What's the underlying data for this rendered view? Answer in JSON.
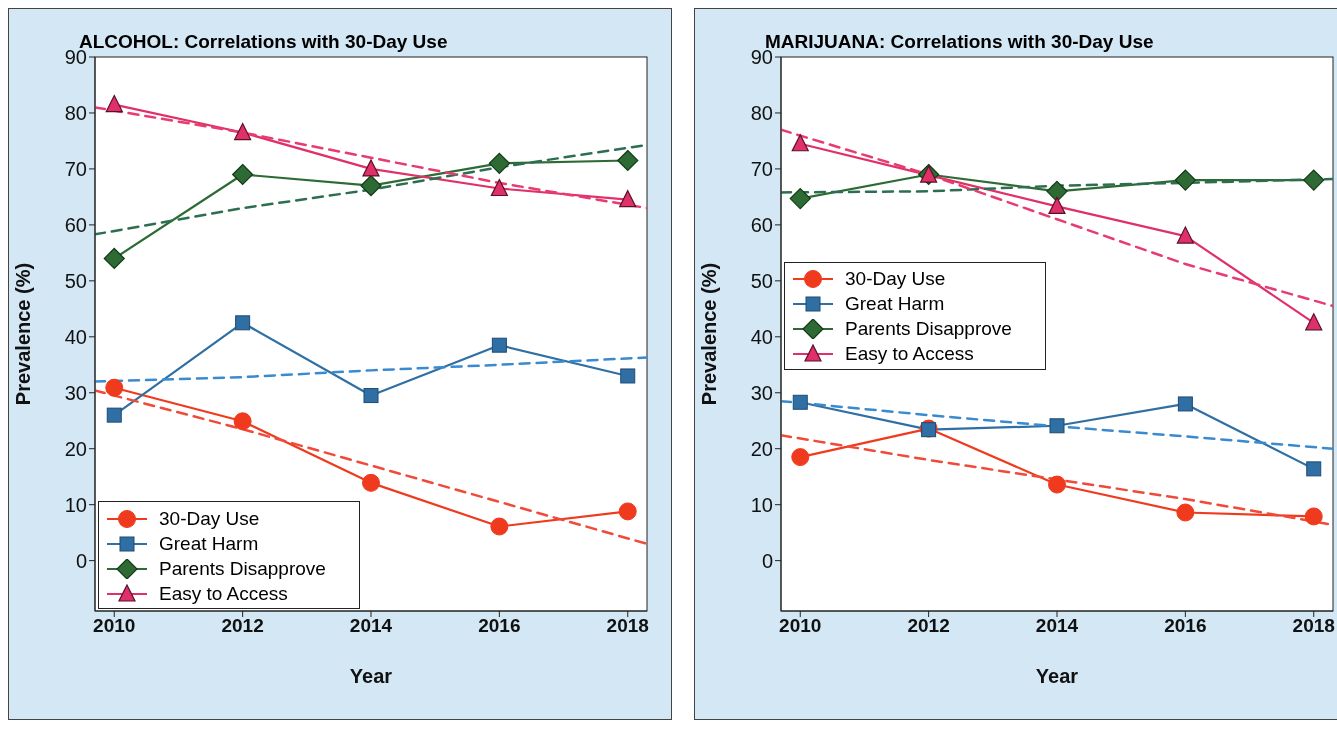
{
  "chart_data": [
    {
      "type": "line",
      "title": "ALCOHOL:  Correlations with 30-Day Use",
      "xlabel": "Year",
      "ylabel": "Prevalence (%)",
      "x": [
        2010,
        2012,
        2014,
        2016,
        2018
      ],
      "xlim": [
        2009.7,
        2018.3
      ],
      "xticks": [
        2010,
        2012,
        2014,
        2016,
        2018
      ],
      "ylim": [
        -9,
        90
      ],
      "yticks": [
        0,
        10,
        20,
        30,
        40,
        50,
        60,
        70,
        80,
        90
      ],
      "legend": "bottom left",
      "series": [
        {
          "name": "30-Day Use",
          "color": "#f03a1e",
          "values": [
            30.9,
            24.9,
            13.9,
            6.1,
            8.8
          ],
          "marker": "circle",
          "line_style": "solid"
        },
        {
          "name": "Great Harm",
          "color": "#2f6fa3",
          "values": [
            26,
            42.5,
            29.5,
            38.5,
            33
          ],
          "marker": "square",
          "line_style": "solid"
        },
        {
          "name": "Parents Disapprove",
          "color": "#2e6b34",
          "values": [
            54,
            69,
            67,
            71,
            71.5
          ],
          "marker": "diamond",
          "line_style": "solid"
        },
        {
          "name": "Easy to Access",
          "color": "#e0306a",
          "values": [
            81.5,
            76.5,
            70,
            66.5,
            64.5
          ],
          "marker": "triangle",
          "line_style": "solid"
        },
        {
          "type": "line",
          "color": "#f04a3a",
          "x": [
            2009.7,
            2012,
            2014,
            2016,
            2018.3
          ],
          "values": [
            30.4,
            23.5,
            17,
            10.5,
            3
          ],
          "marker": "none",
          "line_style": "dashed"
        },
        {
          "type": "line",
          "color": "#3a8ad0",
          "x": [
            2009.7,
            2012,
            2014,
            2016,
            2018.3
          ],
          "values": [
            32,
            32.8,
            34,
            35,
            36.3
          ],
          "marker": "none",
          "line_style": "dashed"
        },
        {
          "type": "line",
          "color": "#2e6e50",
          "x": [
            2009.7,
            2012,
            2014,
            2016,
            2018.3
          ],
          "values": [
            58.3,
            63,
            66.3,
            70.3,
            74.3
          ],
          "marker": "none",
          "line_style": "dashed"
        },
        {
          "type": "line",
          "color": "#e83c70",
          "x": [
            2009.7,
            2012,
            2014,
            2016,
            2018.3
          ],
          "values": [
            81,
            76.5,
            72,
            67.5,
            63
          ],
          "marker": "none",
          "line_style": "dashed"
        }
      ]
    },
    {
      "type": "line",
      "title": "MARIJUANA:  Correlations with 30-Day Use",
      "xlabel": "Year",
      "ylabel": "Prevalence (%)",
      "x": [
        2010,
        2012,
        2014,
        2016,
        2018
      ],
      "xlim": [
        2009.7,
        2018.3
      ],
      "xticks": [
        2010,
        2012,
        2014,
        2016,
        2018
      ],
      "ylim": [
        -9,
        90
      ],
      "yticks": [
        0,
        10,
        20,
        30,
        40,
        50,
        60,
        70,
        80,
        90
      ],
      "legend": "center left",
      "series": [
        {
          "name": "30-Day Use",
          "color": "#f03a1e",
          "values": [
            18.5,
            23.6,
            13.6,
            8.6,
            7.9
          ],
          "marker": "circle",
          "line_style": "solid"
        },
        {
          "name": "Great Harm",
          "color": "#2f6fa3",
          "values": [
            28.3,
            23.4,
            24.1,
            28,
            16.4
          ],
          "marker": "square",
          "line_style": "solid"
        },
        {
          "name": "Parents Disapprove",
          "color": "#2e6b34",
          "values": [
            64.7,
            69,
            66,
            68,
            68
          ],
          "marker": "diamond",
          "line_style": "solid"
        },
        {
          "name": "Easy to Access",
          "color": "#e0306a",
          "values": [
            74.5,
            68.9,
            63.3,
            58,
            42.5
          ],
          "marker": "triangle",
          "line_style": "solid"
        },
        {
          "type": "line",
          "color": "#f04a3a",
          "x": [
            2009.7,
            2012,
            2014,
            2016,
            2018.3
          ],
          "values": [
            22.4,
            18,
            14.5,
            11,
            6.4
          ],
          "marker": "none",
          "line_style": "dashed"
        },
        {
          "type": "line",
          "color": "#3a8ad0",
          "x": [
            2009.7,
            2012,
            2014,
            2016,
            2018.3
          ],
          "values": [
            28.5,
            26,
            24,
            22.2,
            20
          ],
          "marker": "none",
          "line_style": "dashed"
        },
        {
          "type": "line",
          "color": "#2e6e50",
          "x": [
            2009.7,
            2012,
            2014,
            2016,
            2018.3
          ],
          "values": [
            65.8,
            66,
            67,
            67.5,
            68.2
          ],
          "marker": "none",
          "line_style": "dashed"
        },
        {
          "type": "line",
          "color": "#e83c70",
          "x": [
            2009.7,
            2012,
            2014,
            2016,
            2018.3
          ],
          "values": [
            77,
            69,
            61,
            53,
            45.5
          ],
          "marker": "none",
          "line_style": "dashed"
        }
      ]
    }
  ]
}
